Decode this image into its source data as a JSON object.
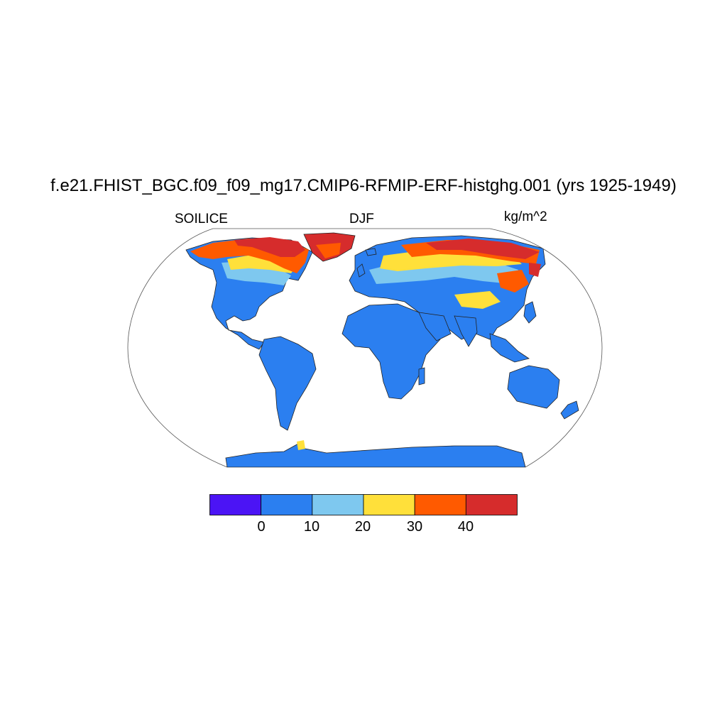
{
  "title": "f.e21.FHIST_BGC.f09_f09_mg17.CMIP6-RFMIP-ERF-histghg.001 (yrs 1925-1949)",
  "left_label": "SOILICE",
  "center_label": "DJF",
  "right_label": "kg/m^2",
  "colorbar": {
    "colors": [
      "#4b14f5",
      "#2b7ff0",
      "#7ec8ef",
      "#ffe03a",
      "#ff5a00",
      "#d62c2c"
    ],
    "tick_labels": [
      "0",
      "10",
      "20",
      "30",
      "40"
    ]
  },
  "chart_data": {
    "type": "heatmap",
    "variable": "SOILICE",
    "season": "DJF",
    "units": "kg/m^2",
    "projection": "Robinson",
    "levels": [
      0,
      10,
      20,
      30,
      40
    ],
    "colors": [
      "#4b14f5",
      "#2b7ff0",
      "#7ec8ef",
      "#ffe03a",
      "#ff5a00",
      "#d62c2c"
    ]
  }
}
